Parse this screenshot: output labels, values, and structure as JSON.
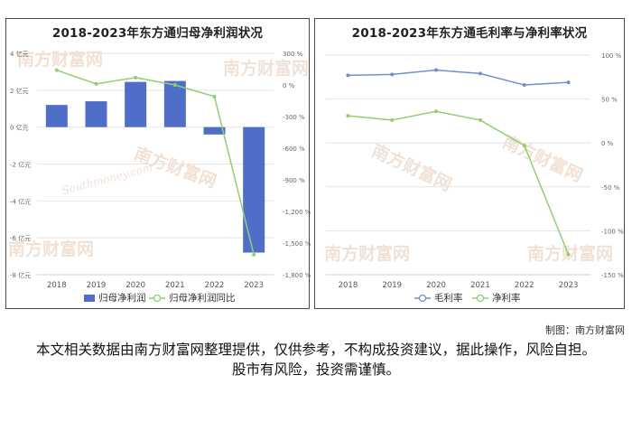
{
  "credit": "制图：南方财富网",
  "disclaimer": "本文相关数据由南方财富网整理提供，仅供参考，不构成投资建议，据此操作，风险自担。股市有风险，投资需谨慎。",
  "watermark": {
    "cn": "南方财富网",
    "en": "Southmoney.com"
  },
  "colors": {
    "bar": "#4e6ec8",
    "net_margin": "#8fcf6f",
    "gross_margin": "#6f8fcf"
  },
  "chart_data": [
    {
      "type": "bar",
      "title": "2018-2023年东方通归母净利润状况",
      "categories": [
        "2018",
        "2019",
        "2020",
        "2021",
        "2022",
        "2023"
      ],
      "y_left": {
        "ticks": [
          "4 亿元",
          "2 亿元",
          "0 亿元",
          "-2 亿元",
          "-4 亿元",
          "-6 亿元",
          "-8 亿元"
        ],
        "ylim": [
          -8,
          4
        ],
        "unit": "亿元"
      },
      "y_right": {
        "ticks": [
          "300 %",
          "0 %",
          "-300 %",
          "-600 %",
          "-900 %",
          "-1,200 %",
          "-1,500 %",
          "-1,800 %"
        ],
        "ylim": [
          -1800,
          300
        ],
        "unit": "%"
      },
      "grid": true,
      "legend_position": "bottom",
      "series": [
        {
          "name": "归母净利润",
          "type": "bar",
          "axis": "left",
          "values": [
            1.2,
            1.4,
            2.45,
            2.5,
            -0.4,
            -6.8
          ]
        },
        {
          "name": "归母净利润同比",
          "type": "line",
          "axis": "right",
          "values": [
            140,
            10,
            70,
            0,
            -110,
            -1610
          ]
        }
      ]
    },
    {
      "type": "line",
      "title": "2018-2023年东方通毛利率与净利率状况",
      "categories": [
        "2018",
        "2019",
        "2020",
        "2021",
        "2022",
        "2023"
      ],
      "y_right": {
        "ticks": [
          "100 %",
          "50 %",
          "0 %",
          "-50 %",
          "-100 %",
          "-150 %"
        ],
        "ylim": [
          -150,
          100
        ],
        "unit": "%"
      },
      "grid": true,
      "legend_position": "bottom",
      "series": [
        {
          "name": "毛利率",
          "values": [
            77,
            78,
            83,
            79,
            66,
            69
          ]
        },
        {
          "name": "净利率",
          "values": [
            31,
            26,
            36,
            26,
            -3,
            -127
          ]
        }
      ]
    }
  ]
}
